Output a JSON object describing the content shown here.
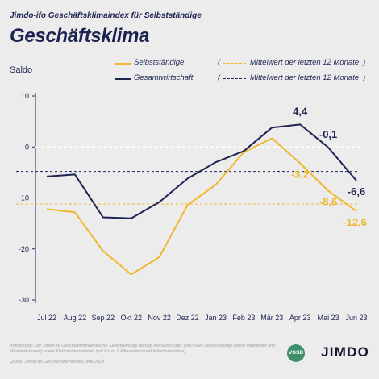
{
  "header": {
    "supertitle": "Jimdo-ifo Geschäftsklimaindex für Selbstständige",
    "title": "Geschäftsklima"
  },
  "legend": {
    "selbststaendige": "Selbstständige",
    "gesamtwirtschaft": "Gesamtwirtschaft",
    "mean_selbst": "Mittelwert der letzten 12 Monate",
    "mean_gesamt": "Mittelwert der letzten 12 Monate",
    "paren_open": "(",
    "paren_close": ")"
  },
  "footer": {
    "note": "Anmerkung: Der Jimdo-ifo Geschäftsklimaindex für Selbstständige befragt monatlich über 1500 Solo-Selbstständige (ohne Mitarbeiter und Mitarbeiterinnen) sowie Kleinstunternehmen (mit bis zu 9 Mitarbeitern und Mitarbeiterinnen).",
    "source": "Quelle: Jimdo-ifo Geschäftsklimaindex, Mai 2023",
    "brand": "JIMDO",
    "badge": "VGSD"
  },
  "colors": {
    "gesamt": "#1e2452",
    "selbst": "#f0b72f",
    "background": "#ececec"
  },
  "chart_data": {
    "type": "line",
    "ylabel": "Saldo",
    "ylim": [
      -30,
      10
    ],
    "yticks": [
      10,
      0,
      -10,
      -20,
      -30
    ],
    "grid": false,
    "zero_line": true,
    "categories": [
      "Jul 22",
      "Aug 22",
      "Sep 22",
      "Okt 22",
      "Nov 22",
      "Dez 22",
      "Jan 23",
      "Feb 23",
      "Mär 23",
      "Apr 23",
      "Mai 23",
      "Jun 23"
    ],
    "series": [
      {
        "name": "Gesamtwirtschaft",
        "color": "#1e2452",
        "values": [
          -5.8,
          -5.4,
          -13.8,
          -14.0,
          -10.8,
          -6.2,
          -3.0,
          -0.8,
          3.8,
          4.4,
          -0.1,
          -6.6
        ],
        "mean": -4.8,
        "labels": [
          {
            "index": 9,
            "text": "4,4"
          },
          {
            "index": 10,
            "text": "-0,1"
          },
          {
            "index": 11,
            "text": "-6,6"
          }
        ]
      },
      {
        "name": "Selbstständige",
        "color": "#f0b72f",
        "values": [
          -12.2,
          -12.8,
          -20.4,
          -25.0,
          -21.6,
          -11.4,
          -7.4,
          -1.0,
          1.7,
          -3.2,
          -8.6,
          -12.6
        ],
        "mean": -11.2,
        "labels": [
          {
            "index": 9,
            "text": "-3,2"
          },
          {
            "index": 10,
            "text": "-8,6"
          },
          {
            "index": 11,
            "text": "-12,6"
          }
        ]
      }
    ]
  }
}
